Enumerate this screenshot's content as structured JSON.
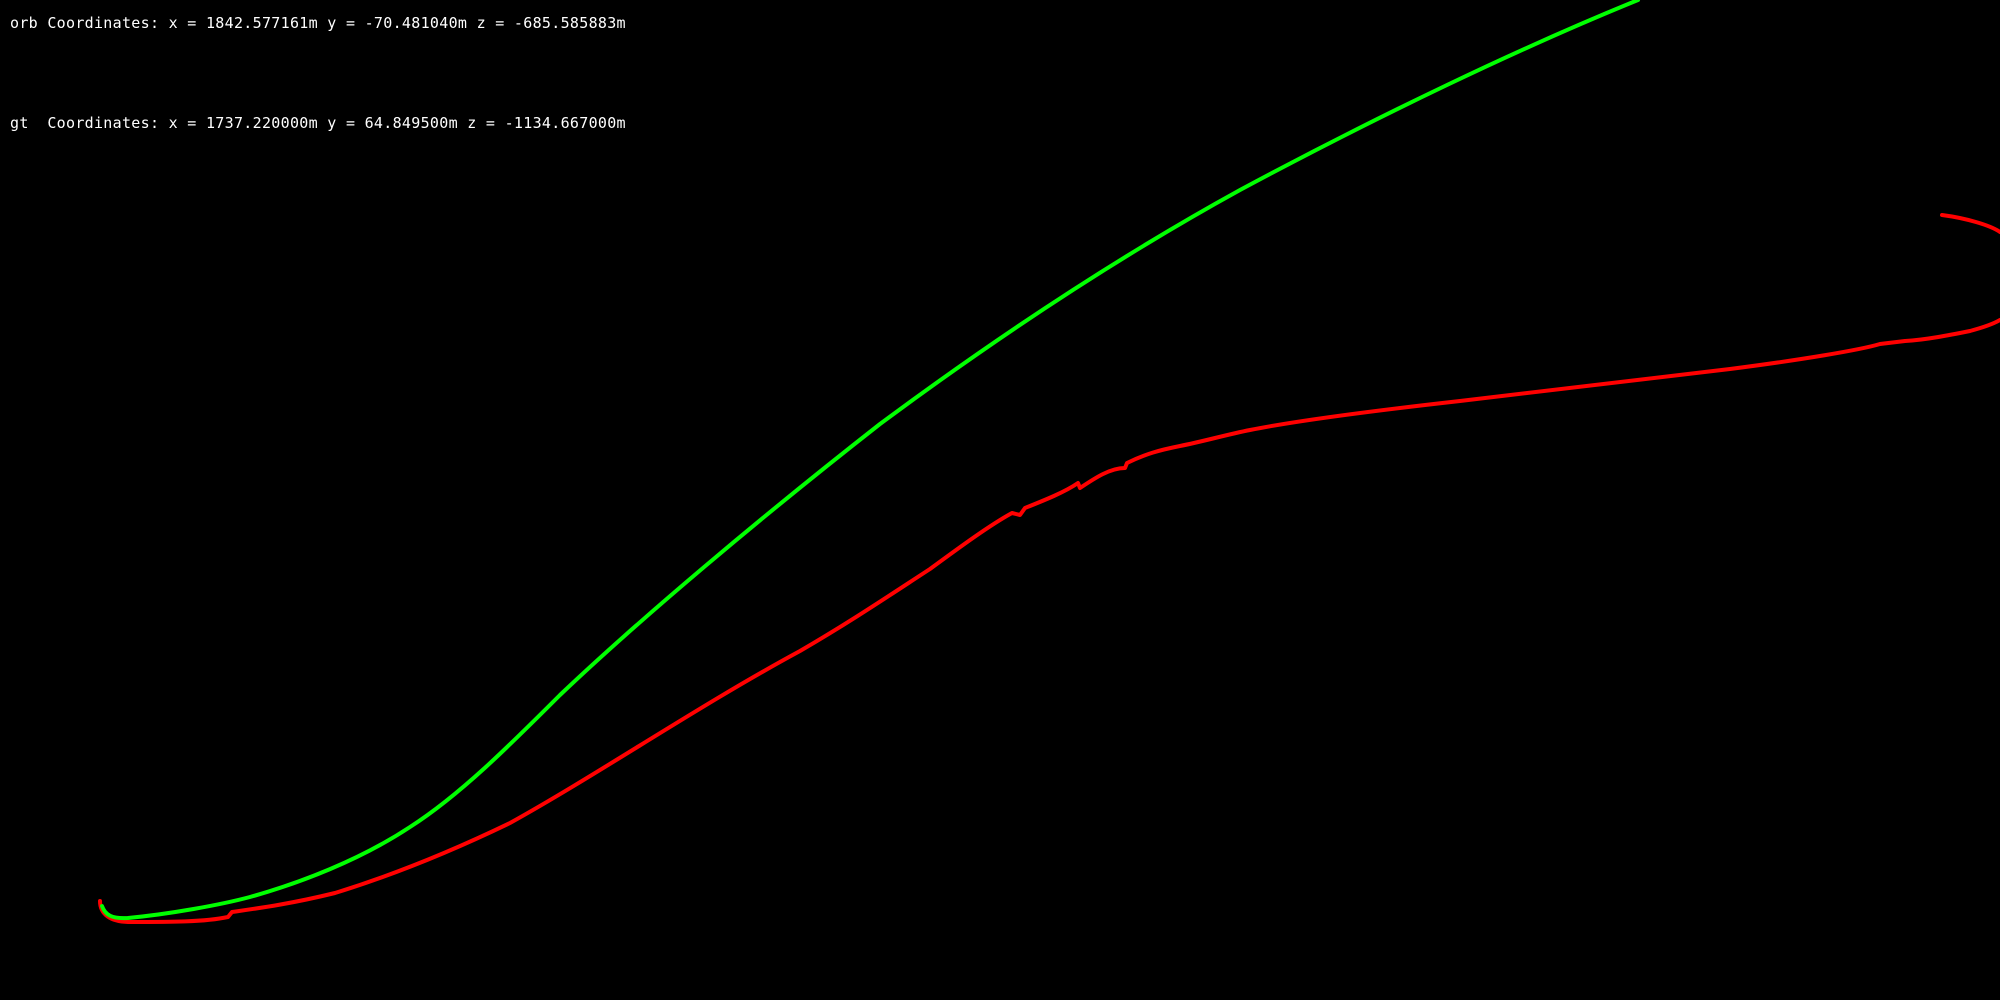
{
  "readouts": {
    "orb": {
      "label": "orb Coordinates:",
      "x": "x = 1842.577161m",
      "y": "y = -70.481040m",
      "z": "z = -685.585883m"
    },
    "gt": {
      "label": "gt  Coordinates:",
      "x": "x = 1737.220000m",
      "y": "y = 64.849500m",
      "z": "z = -1134.667000m"
    }
  },
  "colors": {
    "background": "#000000",
    "text": "#ffffff",
    "orb_trajectory": "#00ff00",
    "gt_trajectory": "#ff0000"
  }
}
